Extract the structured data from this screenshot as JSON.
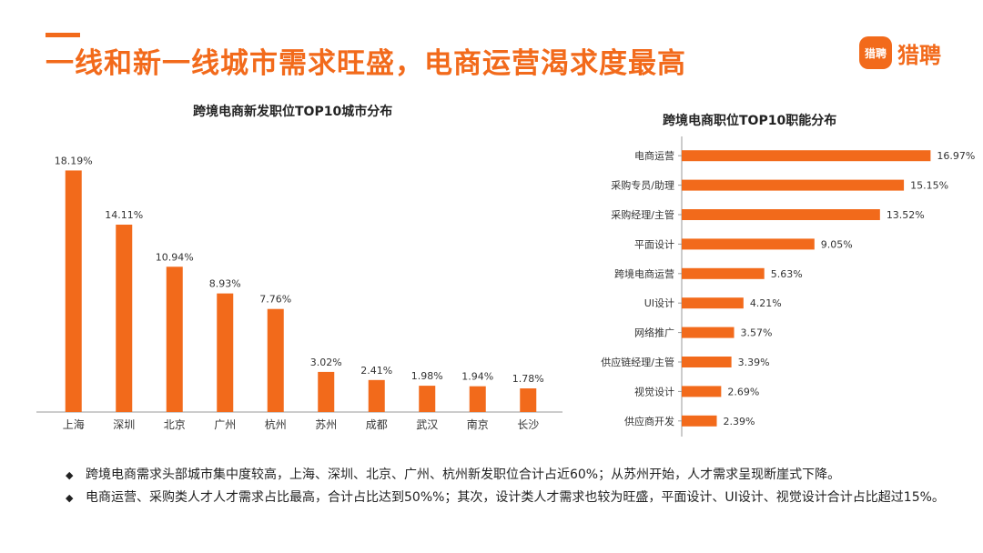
{
  "header": {
    "title": "一线和新一线城市需求旺盛，电商运营渴求度最高"
  },
  "brand": {
    "badge": "猎聘",
    "name": "猎聘",
    "color": "#f26a1b"
  },
  "colors": {
    "bar": "#f26a1b",
    "axis": "#9a9a9a"
  },
  "chart_data": [
    {
      "type": "bar",
      "title": "跨境电商新发职位TOP10城市分布",
      "categories": [
        "上海",
        "深圳",
        "北京",
        "广州",
        "杭州",
        "苏州",
        "成都",
        "武汉",
        "南京",
        "长沙"
      ],
      "values": [
        18.19,
        14.11,
        10.94,
        8.93,
        7.76,
        3.02,
        2.41,
        1.98,
        1.94,
        1.78
      ],
      "labels": [
        "18.19%",
        "14.11%",
        "10.94%",
        "8.93%",
        "7.76%",
        "3.02%",
        "2.41%",
        "1.98%",
        "1.94%",
        "1.78%"
      ],
      "unit": "%",
      "ylim": [
        0,
        20
      ]
    },
    {
      "type": "bar",
      "orientation": "horizontal",
      "title": "跨境电商职位TOP10职能分布",
      "categories": [
        "电商运营",
        "采购专员/助理",
        "采购经理/主管",
        "平面设计",
        "跨境电商运营",
        "UI设计",
        "网络推广",
        "供应链经理/主管",
        "视觉设计",
        "供应商开发"
      ],
      "values": [
        16.97,
        15.15,
        13.52,
        9.05,
        5.63,
        4.21,
        3.57,
        3.39,
        2.69,
        2.39
      ],
      "labels": [
        "16.97%",
        "15.15%",
        "13.52%",
        "9.05%",
        "5.63%",
        "4.21%",
        "3.57%",
        "3.39%",
        "2.69%",
        "2.39%"
      ],
      "unit": "%",
      "xlim": [
        0,
        18
      ]
    }
  ],
  "notes": {
    "bullet_symbol": "◆",
    "items": [
      "跨境电商需求头部城市集中度较高，上海、深圳、北京、广州、杭州新发职位合计占近60%；从苏州开始，人才需求呈现断崖式下降。",
      "电商运营、采购类人才人才需求占比最高，合计占比达到50%%；其次，设计类人才需求也较为旺盛，平面设计、UI设计、视觉设计合计占比超过15%。"
    ]
  }
}
